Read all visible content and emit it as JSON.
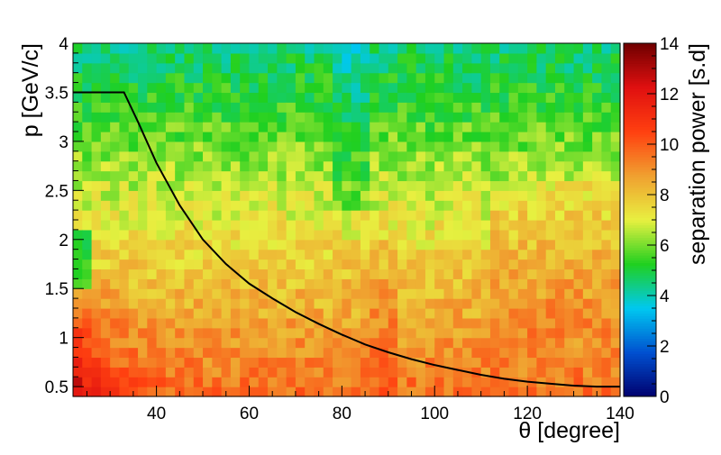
{
  "chart_data": {
    "type": "heatmap",
    "title": "",
    "xlabel": "θ [degree]",
    "ylabel": "p [GeV/c]",
    "xlim": [
      22,
      140
    ],
    "ylim": [
      0.4,
      4.0
    ],
    "x_ticks": [
      40,
      60,
      80,
      100,
      120,
      140
    ],
    "y_ticks": [
      0.5,
      1,
      1.5,
      2,
      2.5,
      3,
      3.5,
      4
    ],
    "colorbar": {
      "label": "separation power [s.d]",
      "range": [
        0,
        14
      ],
      "ticks": [
        0,
        2,
        4,
        6,
        8,
        10,
        12,
        14
      ],
      "palette": [
        "#00006e",
        "#0050d0",
        "#00c8f0",
        "#20d020",
        "#e8f040",
        "#f0a030",
        "#ff4010",
        "#e01010",
        "#700000"
      ]
    },
    "grid_bins": {
      "x": 59,
      "y": 36
    },
    "grid_on": false,
    "legend": "colorbar-right",
    "pattern_summary": "Separation power is highest (12–14) at low momentum and small angle (θ < 30, p < 1.6), around 8–10 over most of the mid region, and falls to 4–6 at high momentum (p > 3.2), with a distinct band of lower values near θ ≈ 78–86 above p ≈ 2.5.",
    "curve": {
      "name": "",
      "color": "#000000",
      "x": [
        22,
        33,
        36,
        40,
        45,
        50,
        55,
        60,
        65,
        70,
        75,
        80,
        85,
        90,
        95,
        100,
        105,
        110,
        115,
        120,
        125,
        130,
        135,
        140
      ],
      "y": [
        3.5,
        3.5,
        3.2,
        2.78,
        2.35,
        2.0,
        1.75,
        1.55,
        1.4,
        1.26,
        1.14,
        1.03,
        0.93,
        0.85,
        0.78,
        0.72,
        0.67,
        0.62,
        0.58,
        0.55,
        0.53,
        0.51,
        0.5,
        0.5
      ]
    }
  }
}
